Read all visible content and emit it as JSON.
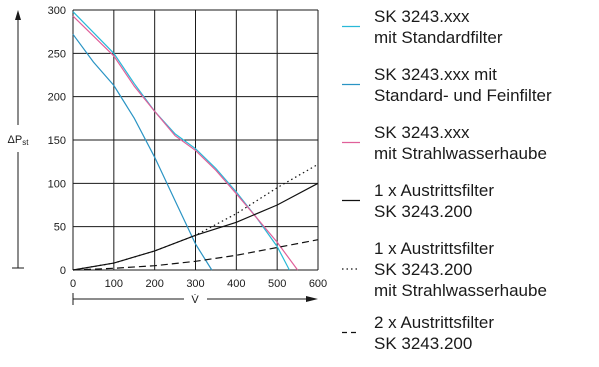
{
  "chart_data": {
    "type": "line",
    "xlabel": "V̇",
    "ylabel": "ΔPst",
    "xlim": [
      0,
      600
    ],
    "ylim": [
      0,
      300
    ],
    "xticks": [
      0,
      100,
      200,
      300,
      400,
      500,
      600
    ],
    "yticks": [
      0,
      50,
      100,
      150,
      200,
      250,
      300
    ],
    "grid": true,
    "legend_position": "right",
    "series": [
      {
        "name_lines": [
          "SK 3243.xxx",
          "mit Standardfilter"
        ],
        "color": "#29b9d8",
        "dash": "solid",
        "x": [
          0,
          100,
          150,
          200,
          250,
          300,
          350,
          400,
          450,
          500,
          530
        ],
        "y": [
          298,
          250,
          215,
          183,
          157,
          140,
          117,
          90,
          60,
          27,
          0
        ]
      },
      {
        "name_lines": [
          "SK 3243.xxx mit",
          "Standard- und Feinfilter"
        ],
        "color": "#2a94c4",
        "dash": "solid",
        "x": [
          0,
          50,
          100,
          150,
          200,
          250,
          300,
          340
        ],
        "y": [
          272,
          240,
          213,
          175,
          130,
          80,
          30,
          0
        ]
      },
      {
        "name_lines": [
          "SK 3243.xxx",
          "mit Strahlwasserhaube"
        ],
        "color": "#e0609a",
        "dash": "solid",
        "x": [
          0,
          100,
          150,
          200,
          250,
          300,
          350,
          400,
          450,
          500,
          550
        ],
        "y": [
          293,
          247,
          212,
          183,
          155,
          138,
          115,
          88,
          60,
          32,
          0
        ]
      },
      {
        "name_lines": [
          "1 x Austrittsfilter",
          "SK 3243.200"
        ],
        "color": "#111111",
        "dash": "solid",
        "x": [
          0,
          100,
          200,
          300,
          400,
          500,
          600
        ],
        "y": [
          0,
          8,
          22,
          40,
          55,
          75,
          100
        ]
      },
      {
        "name_lines": [
          "1 x Austrittsfilter",
          "SK 3243.200",
          "mit Strahlwasserhaube"
        ],
        "color": "#111111",
        "dash": "dotted",
        "x": [
          0,
          100,
          200,
          300,
          400,
          500,
          600
        ],
        "y": [
          0,
          8,
          22,
          40,
          65,
          95,
          122
        ]
      },
      {
        "name_lines": [
          "2 x Austrittsfilter",
          "SK 3243.200"
        ],
        "color": "#111111",
        "dash": "dashed",
        "x": [
          0,
          100,
          200,
          300,
          400,
          500,
          600
        ],
        "y": [
          0,
          2,
          5,
          10,
          17,
          26,
          35
        ]
      }
    ]
  }
}
